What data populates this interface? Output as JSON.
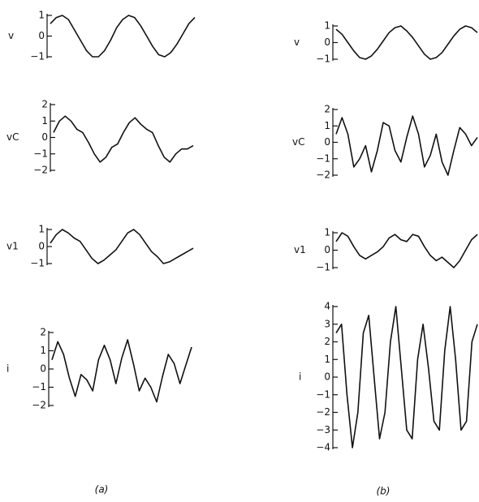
{
  "captions": [
    "(a)",
    "(b)"
  ],
  "chart_data": [
    {
      "type": "line",
      "ylabel": "v",
      "ylim": [
        -1,
        1
      ],
      "yticks": [
        1,
        0,
        {
          "value": -1,
          "label": "−1"
        }
      ],
      "color": "#111",
      "values": [
        0.6,
        0.9,
        1.0,
        0.8,
        0.3,
        -0.2,
        -0.7,
        -1.0,
        -1.0,
        -0.7,
        -0.2,
        0.4,
        0.8,
        1.0,
        0.9,
        0.5,
        0.0,
        -0.5,
        -0.9,
        -1.0,
        -0.8,
        -0.4,
        0.1,
        0.6,
        0.9
      ]
    },
    {
      "type": "line",
      "ylabel": "vC",
      "ylim": [
        -2,
        2
      ],
      "yticks": [
        2,
        1,
        0,
        {
          "value": -1,
          "label": "−1"
        },
        {
          "value": -2,
          "label": "−2"
        }
      ],
      "color": "#111",
      "values": [
        0.3,
        1.0,
        1.3,
        1.0,
        0.5,
        0.3,
        -0.3,
        -1.0,
        -1.5,
        -1.2,
        -0.6,
        -0.4,
        0.3,
        0.9,
        1.2,
        0.8,
        0.5,
        0.3,
        -0.5,
        -1.2,
        -1.5,
        -1.0,
        -0.7,
        -0.7,
        -0.5
      ]
    },
    {
      "type": "line",
      "ylabel": "v1",
      "ylim": [
        -1,
        1
      ],
      "yticks": [
        1,
        0,
        {
          "value": -1,
          "label": "−1"
        }
      ],
      "color": "#111",
      "values": [
        0.2,
        0.7,
        1.0,
        0.8,
        0.5,
        0.3,
        -0.2,
        -0.7,
        -1.0,
        -0.8,
        -0.5,
        -0.2,
        0.3,
        0.8,
        1.0,
        0.7,
        0.2,
        -0.3,
        -0.6,
        -1.0,
        -0.9,
        -0.7,
        -0.5,
        -0.3,
        -0.1
      ]
    },
    {
      "type": "line",
      "ylabel": "i",
      "ylim": [
        -2,
        2
      ],
      "yticks": [
        2,
        1,
        0,
        {
          "value": -1,
          "label": "−1"
        },
        {
          "value": -2,
          "label": "−2"
        }
      ],
      "color": "#111",
      "values": [
        0.5,
        1.5,
        0.8,
        -0.5,
        -1.5,
        -0.3,
        -0.6,
        -1.2,
        0.5,
        1.3,
        0.5,
        -0.8,
        0.6,
        1.6,
        0.3,
        -1.2,
        -0.5,
        -1.0,
        -1.8,
        -0.4,
        0.8,
        0.3,
        -0.8,
        0.2,
        1.2
      ]
    },
    {
      "type": "line",
      "ylabel": "v",
      "ylim": [
        -1,
        1
      ],
      "yticks": [
        1,
        0,
        {
          "value": -1,
          "label": "−1"
        }
      ],
      "color": "#111",
      "values": [
        0.8,
        0.5,
        0.0,
        -0.5,
        -0.9,
        -1.0,
        -0.8,
        -0.4,
        0.1,
        0.6,
        0.9,
        1.0,
        0.7,
        0.3,
        -0.2,
        -0.7,
        -1.0,
        -0.9,
        -0.6,
        -0.1,
        0.4,
        0.8,
        1.0,
        0.9,
        0.6
      ]
    },
    {
      "type": "line",
      "ylabel": "vC",
      "ylim": [
        -2,
        2
      ],
      "yticks": [
        2,
        1,
        0,
        {
          "value": -1,
          "label": "−1"
        },
        {
          "value": -2,
          "label": "−2"
        }
      ],
      "color": "#111",
      "values": [
        0.5,
        1.5,
        0.5,
        -1.5,
        -1.0,
        -0.2,
        -1.8,
        -0.5,
        1.2,
        1.0,
        -0.5,
        -1.2,
        0.3,
        1.6,
        0.5,
        -1.5,
        -0.8,
        0.5,
        -1.2,
        -2.0,
        -0.5,
        0.9,
        0.5,
        -0.2,
        0.3
      ]
    },
    {
      "type": "line",
      "ylabel": "v1",
      "ylim": [
        -1,
        1
      ],
      "yticks": [
        1,
        0,
        {
          "value": -1,
          "label": "−1"
        }
      ],
      "color": "#111",
      "values": [
        0.5,
        1.0,
        0.8,
        0.2,
        -0.3,
        -0.5,
        -0.3,
        -0.1,
        0.2,
        0.7,
        0.9,
        0.6,
        0.5,
        0.9,
        0.8,
        0.2,
        -0.3,
        -0.6,
        -0.4,
        -0.7,
        -1.0,
        -0.6,
        0.0,
        0.6,
        0.9
      ]
    },
    {
      "type": "line",
      "ylabel": "i",
      "ylim": [
        -4,
        4
      ],
      "yticks": [
        4,
        3,
        2,
        1,
        0,
        {
          "value": -1,
          "label": "−1"
        },
        {
          "value": -2,
          "label": "−2"
        },
        {
          "value": -3,
          "label": "−3"
        },
        {
          "value": -4,
          "label": "−4"
        }
      ],
      "color": "#111",
      "values": [
        2.5,
        3.0,
        -1.0,
        -4.0,
        -2.0,
        2.5,
        3.5,
        0.0,
        -3.5,
        -2.0,
        2.0,
        4.0,
        0.5,
        -3.0,
        -3.5,
        1.0,
        3.0,
        0.5,
        -2.5,
        -3.0,
        1.5,
        4.0,
        1.0,
        -3.0,
        -2.5,
        2.0,
        3.0
      ]
    }
  ]
}
